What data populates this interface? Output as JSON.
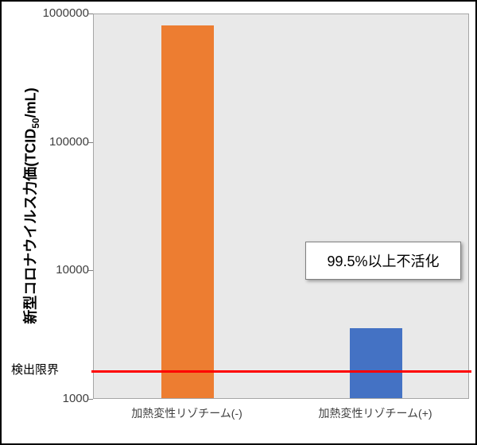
{
  "figure": {
    "y_axis_title": {
      "prefix": "新型コロナウイルス力価(TCID",
      "subscript": "50",
      "suffix": "/mL)"
    },
    "detection_limit_label": "検出限界",
    "annotation_text": "99.5%以上不活化"
  },
  "chart_data": {
    "type": "bar",
    "categories": [
      "加熱変性リゾチーム(-)",
      "加熱変性リゾチーム(+)"
    ],
    "values": [
      800000,
      3500
    ],
    "bar_colors": [
      "#ED7D31",
      "#4472C4"
    ],
    "title": "",
    "xlabel": "",
    "ylabel": "新型コロナウイルス力価(TCID50/mL)",
    "yscale": "log",
    "ylim": [
      1000,
      1000000
    ],
    "yticks": [
      1000000,
      100000,
      10000,
      1000
    ],
    "grid": false,
    "legend": false,
    "plot_background": "#E9E9E9",
    "reference_line": {
      "label": "検出限界",
      "value": 1600,
      "color": "#FF0000"
    },
    "annotations": [
      {
        "text": "99.5%以上不活化",
        "target": "加熱変性リゾチーム(+)"
      }
    ]
  }
}
